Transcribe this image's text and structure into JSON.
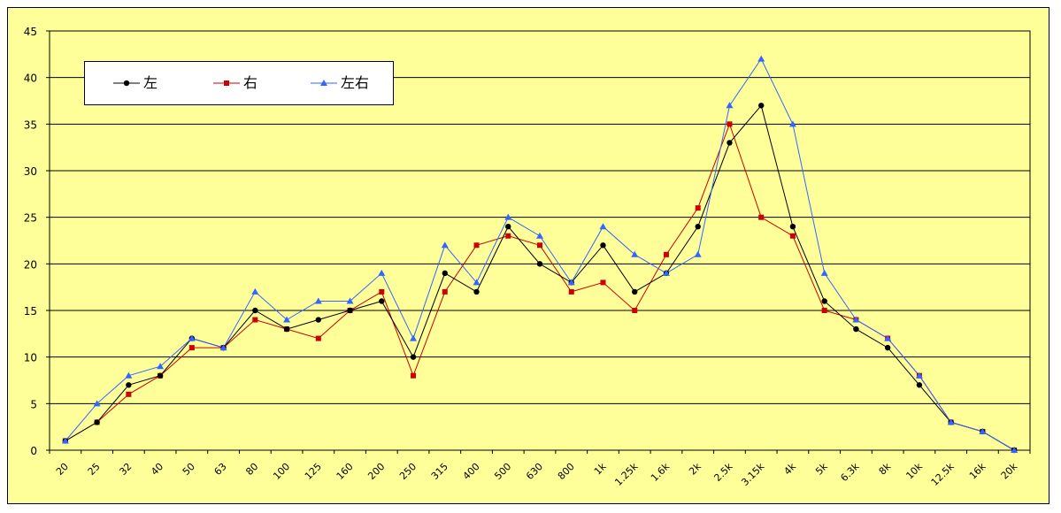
{
  "chart_data": {
    "type": "line",
    "categories": [
      "20",
      "25",
      "32",
      "40",
      "50",
      "63",
      "80",
      "100",
      "125",
      "160",
      "200",
      "250",
      "315",
      "400",
      "500",
      "630",
      "800",
      "1k",
      "1.25k",
      "1.6k",
      "2k",
      "2.5k",
      "3.15k",
      "4k",
      "5k",
      "6.3k",
      "8k",
      "10k",
      "12.5k",
      "16k",
      "20k"
    ],
    "ylim": [
      0,
      45
    ],
    "yticks": [
      0,
      5,
      10,
      15,
      20,
      25,
      30,
      35,
      40,
      45
    ],
    "grid": "horizontal",
    "legend_position": "top-left",
    "series": [
      {
        "name": "左",
        "color": "#000000",
        "marker": "circle",
        "values": [
          1,
          3,
          7,
          8,
          12,
          11,
          15,
          13,
          14,
          15,
          16,
          10,
          19,
          17,
          24,
          20,
          18,
          22,
          17,
          19,
          24,
          33,
          37,
          24,
          16,
          13,
          11,
          7,
          3,
          2,
          0
        ]
      },
      {
        "name": "右",
        "color": "#cc0000",
        "marker": "square",
        "values": [
          1,
          3,
          6,
          8,
          11,
          11,
          14,
          13,
          12,
          15,
          17,
          8,
          17,
          22,
          23,
          22,
          17,
          18,
          15,
          21,
          26,
          35,
          25,
          23,
          15,
          14,
          12,
          8,
          3,
          2,
          0
        ]
      },
      {
        "name": "左右",
        "color": "#3366ff",
        "marker": "triangle",
        "values": [
          1,
          5,
          8,
          9,
          12,
          11,
          17,
          14,
          16,
          16,
          19,
          12,
          22,
          18,
          25,
          23,
          18,
          24,
          21,
          19,
          21,
          37,
          42,
          35,
          19,
          14,
          12,
          8,
          3,
          2,
          0
        ]
      }
    ]
  }
}
